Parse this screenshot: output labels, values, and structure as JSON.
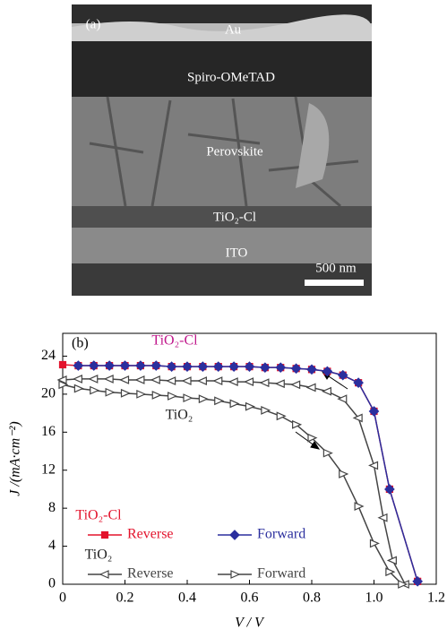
{
  "image_panel": {
    "label": "(a)",
    "layers": [
      "Au",
      "Spiro-OMeTAD",
      "Perovskite",
      "TiO₂-Cl",
      "ITO"
    ],
    "scale_bar": "500 nm"
  },
  "chart_data": {
    "type": "line",
    "panel_label": "(b)",
    "x_label": "V / V",
    "y_label": "J /(mA·cm⁻²)",
    "xlim": [
      0,
      1.2
    ],
    "ylim": [
      0,
      26.4
    ],
    "xticks": [
      0,
      0.2,
      0.4,
      0.6,
      0.8,
      {
        "value": 1,
        "label": "1.0"
      },
      1.2
    ],
    "yticks": [
      0,
      4,
      8,
      12,
      16,
      20,
      24
    ],
    "annotations": [
      {
        "text": "TiO₂-Cl",
        "color": "#c0188c"
      },
      {
        "text": "TiO₂",
        "color": "#222222"
      }
    ],
    "legend_titles": [
      {
        "text": "TiO₂-Cl",
        "color": "#e3132c"
      },
      {
        "text": "TiO₂",
        "color": "#222222"
      }
    ],
    "series": [
      {
        "name": "Reverse",
        "color": "#e3132c",
        "marker": "square",
        "filled": true,
        "x": [
          0,
          0.05,
          0.1,
          0.15,
          0.2,
          0.25,
          0.3,
          0.35,
          0.4,
          0.45,
          0.5,
          0.55,
          0.6,
          0.65,
          0.7,
          0.75,
          0.8,
          0.85,
          0.9,
          0.95,
          1.0,
          1.05,
          1.14
        ],
        "values": [
          23.1,
          23.0,
          23.0,
          23.0,
          23.0,
          23.0,
          23.0,
          22.9,
          22.9,
          22.9,
          22.9,
          22.9,
          22.9,
          22.8,
          22.8,
          22.7,
          22.6,
          22.4,
          22.0,
          21.2,
          18.2,
          10.0,
          0.3
        ]
      },
      {
        "name": "Forward",
        "color": "#2b2f9e",
        "marker": "diamond",
        "filled": true,
        "x": [
          0.05,
          0.1,
          0.15,
          0.2,
          0.25,
          0.3,
          0.35,
          0.4,
          0.45,
          0.5,
          0.55,
          0.6,
          0.65,
          0.7,
          0.75,
          0.8,
          0.85,
          0.9,
          0.95,
          1.0,
          1.05,
          1.14
        ],
        "values": [
          23.0,
          23.0,
          23.0,
          23.0,
          23.0,
          23.0,
          22.9,
          22.9,
          22.9,
          22.9,
          22.9,
          22.9,
          22.8,
          22.8,
          22.7,
          22.6,
          22.4,
          22.0,
          21.2,
          18.2,
          10.0,
          0.3
        ]
      },
      {
        "name": "Reverse",
        "color": "#444444",
        "marker": "tri-left",
        "filled": false,
        "x": [
          0,
          0.05,
          0.1,
          0.15,
          0.2,
          0.25,
          0.3,
          0.35,
          0.4,
          0.45,
          0.5,
          0.55,
          0.6,
          0.65,
          0.7,
          0.75,
          0.8,
          0.85,
          0.9,
          0.95,
          1.0,
          1.03,
          1.06,
          1.1
        ],
        "values": [
          21.5,
          21.6,
          21.6,
          21.6,
          21.5,
          21.5,
          21.5,
          21.4,
          21.4,
          21.4,
          21.4,
          21.3,
          21.3,
          21.2,
          21.1,
          21.0,
          20.7,
          20.3,
          19.5,
          17.5,
          12.5,
          7,
          2.5,
          0
        ]
      },
      {
        "name": "Forward",
        "color": "#444444",
        "marker": "tri-right",
        "filled": false,
        "x": [
          0,
          0.05,
          0.1,
          0.15,
          0.2,
          0.25,
          0.3,
          0.35,
          0.4,
          0.45,
          0.5,
          0.55,
          0.6,
          0.65,
          0.7,
          0.75,
          0.8,
          0.85,
          0.9,
          0.95,
          1.0,
          1.05,
          1.09
        ],
        "values": [
          21.0,
          20.6,
          20.4,
          20.2,
          20.1,
          20.0,
          19.9,
          19.8,
          19.6,
          19.5,
          19.3,
          19.0,
          18.7,
          18.3,
          17.7,
          16.8,
          15.4,
          13.8,
          11.6,
          8.2,
          4.3,
          1.3,
          0
        ]
      }
    ]
  }
}
